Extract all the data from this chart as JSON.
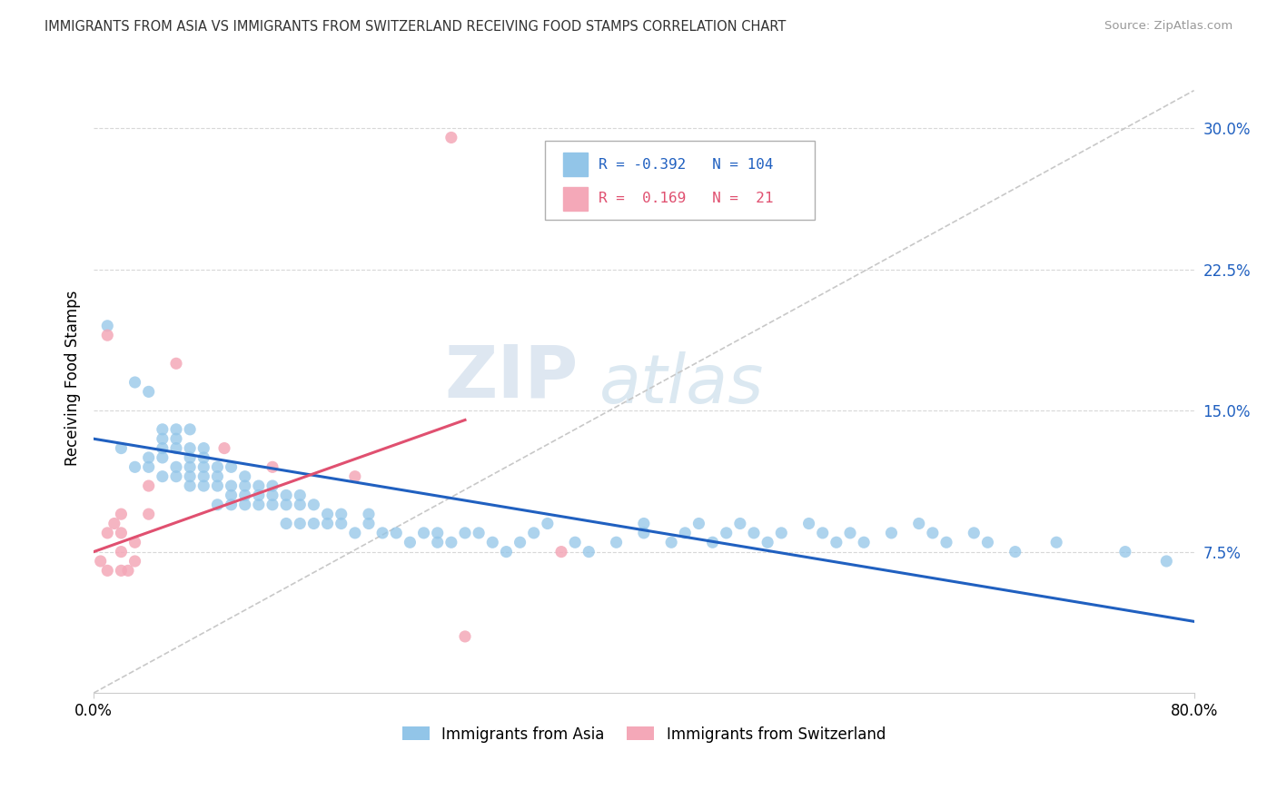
{
  "title": "IMMIGRANTS FROM ASIA VS IMMIGRANTS FROM SWITZERLAND RECEIVING FOOD STAMPS CORRELATION CHART",
  "source": "Source: ZipAtlas.com",
  "ylabel": "Receiving Food Stamps",
  "ytick_values": [
    0.075,
    0.15,
    0.225,
    0.3
  ],
  "xlim": [
    0.0,
    0.8
  ],
  "ylim": [
    0.0,
    0.335
  ],
  "blue_color": "#92c5e8",
  "pink_color": "#f4a8b8",
  "blue_line_color": "#2060c0",
  "pink_line_color": "#e05070",
  "grey_line_color": "#c8c8c8",
  "legend_R_blue": "-0.392",
  "legend_N_blue": "104",
  "legend_R_pink": "0.169",
  "legend_N_pink": "21",
  "blue_scatter_x": [
    0.01,
    0.02,
    0.03,
    0.03,
    0.04,
    0.04,
    0.04,
    0.05,
    0.05,
    0.05,
    0.05,
    0.05,
    0.06,
    0.06,
    0.06,
    0.06,
    0.06,
    0.07,
    0.07,
    0.07,
    0.07,
    0.07,
    0.07,
    0.08,
    0.08,
    0.08,
    0.08,
    0.08,
    0.09,
    0.09,
    0.09,
    0.09,
    0.1,
    0.1,
    0.1,
    0.1,
    0.11,
    0.11,
    0.11,
    0.11,
    0.12,
    0.12,
    0.12,
    0.13,
    0.13,
    0.13,
    0.14,
    0.14,
    0.14,
    0.15,
    0.15,
    0.15,
    0.16,
    0.16,
    0.17,
    0.17,
    0.18,
    0.18,
    0.19,
    0.2,
    0.2,
    0.21,
    0.22,
    0.23,
    0.24,
    0.25,
    0.25,
    0.26,
    0.27,
    0.28,
    0.29,
    0.3,
    0.31,
    0.32,
    0.33,
    0.35,
    0.36,
    0.38,
    0.4,
    0.4,
    0.42,
    0.43,
    0.44,
    0.45,
    0.46,
    0.47,
    0.48,
    0.49,
    0.5,
    0.52,
    0.53,
    0.54,
    0.55,
    0.56,
    0.58,
    0.6,
    0.61,
    0.62,
    0.64,
    0.65,
    0.67,
    0.7,
    0.75,
    0.78
  ],
  "blue_scatter_y": [
    0.195,
    0.13,
    0.12,
    0.165,
    0.125,
    0.12,
    0.16,
    0.115,
    0.125,
    0.13,
    0.135,
    0.14,
    0.115,
    0.12,
    0.13,
    0.135,
    0.14,
    0.11,
    0.115,
    0.12,
    0.125,
    0.13,
    0.14,
    0.11,
    0.115,
    0.12,
    0.125,
    0.13,
    0.1,
    0.11,
    0.115,
    0.12,
    0.1,
    0.105,
    0.11,
    0.12,
    0.1,
    0.105,
    0.11,
    0.115,
    0.1,
    0.105,
    0.11,
    0.1,
    0.105,
    0.11,
    0.09,
    0.1,
    0.105,
    0.09,
    0.1,
    0.105,
    0.09,
    0.1,
    0.09,
    0.095,
    0.09,
    0.095,
    0.085,
    0.09,
    0.095,
    0.085,
    0.085,
    0.08,
    0.085,
    0.085,
    0.08,
    0.08,
    0.085,
    0.085,
    0.08,
    0.075,
    0.08,
    0.085,
    0.09,
    0.08,
    0.075,
    0.08,
    0.085,
    0.09,
    0.08,
    0.085,
    0.09,
    0.08,
    0.085,
    0.09,
    0.085,
    0.08,
    0.085,
    0.09,
    0.085,
    0.08,
    0.085,
    0.08,
    0.085,
    0.09,
    0.085,
    0.08,
    0.085,
    0.08,
    0.075,
    0.08,
    0.075,
    0.07
  ],
  "pink_scatter_x": [
    0.005,
    0.01,
    0.01,
    0.01,
    0.015,
    0.02,
    0.02,
    0.02,
    0.02,
    0.025,
    0.03,
    0.03,
    0.04,
    0.04,
    0.06,
    0.13,
    0.19,
    0.26,
    0.34,
    0.27,
    0.095
  ],
  "pink_scatter_y": [
    0.07,
    0.19,
    0.085,
    0.065,
    0.09,
    0.095,
    0.085,
    0.075,
    0.065,
    0.065,
    0.08,
    0.07,
    0.095,
    0.11,
    0.175,
    0.12,
    0.115,
    0.295,
    0.075,
    0.03,
    0.13
  ],
  "blue_trend_x": [
    0.0,
    0.8
  ],
  "blue_trend_y": [
    0.135,
    0.038
  ],
  "pink_trend_x": [
    0.0,
    0.27
  ],
  "pink_trend_y": [
    0.075,
    0.145
  ],
  "grey_trend_x": [
    0.0,
    0.8
  ],
  "grey_trend_y": [
    0.0,
    0.32
  ],
  "watermark_top": "ZIP",
  "watermark_bottom": "atlas",
  "bottom_legend_labels": [
    "Immigrants from Asia",
    "Immigrants from Switzerland"
  ]
}
